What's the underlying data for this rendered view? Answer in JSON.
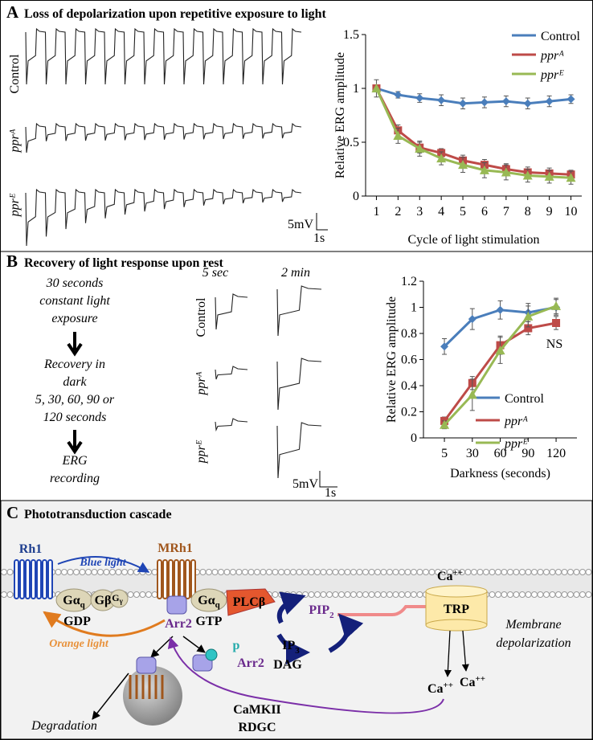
{
  "panel_a": {
    "letter": "A",
    "title": "Loss of depolarization upon repetitive exposure to light",
    "traces": [
      "Control",
      "pprᴬ",
      "pprᴱ"
    ],
    "scale_v": "5mV",
    "scale_t": "1s"
  },
  "panel_b": {
    "letter": "B",
    "title": "Recovery of  light response upon rest",
    "protocol": [
      [
        "30 seconds",
        "constant light",
        "exposure"
      ],
      [
        "Recovery in",
        "dark",
        "5, 30, 60, 90 or",
        "120 seconds"
      ],
      [
        "ERG",
        "recording"
      ]
    ],
    "times": [
      "5 sec",
      "2 min"
    ],
    "traces": [
      "Control",
      "pprᴬ",
      "pprᴱ"
    ],
    "scale_v": "5mV",
    "scale_t": "1s"
  },
  "panel_c": {
    "letter": "C",
    "title": "Phototransduction cascade"
  },
  "chart_data": [
    {
      "type": "line",
      "xlabel": "Cycle of light stimulation",
      "ylabel": "Relative ERG amplitude",
      "x": [
        1,
        2,
        3,
        4,
        5,
        6,
        7,
        8,
        9,
        10
      ],
      "xlim": [
        0.5,
        10.5
      ],
      "xticks": [
        1,
        2,
        3,
        4,
        5,
        6,
        7,
        8,
        9,
        10
      ],
      "ylim": [
        0,
        1.5
      ],
      "yticks": [
        0,
        0.5,
        1,
        1.5
      ],
      "legend": "top-right",
      "series": [
        {
          "name": "Control",
          "color": "#4a7ebb",
          "marker": "diamond",
          "values": [
            1,
            0.94,
            0.91,
            0.89,
            0.86,
            0.87,
            0.88,
            0.86,
            0.88,
            0.9
          ],
          "errors": [
            0.02,
            0.03,
            0.04,
            0.05,
            0.05,
            0.05,
            0.05,
            0.05,
            0.05,
            0.04
          ]
        },
        {
          "name": "pprᴬ",
          "color": "#be4b48",
          "marker": "square",
          "values": [
            1,
            0.61,
            0.45,
            0.4,
            0.33,
            0.29,
            0.25,
            0.22,
            0.21,
            0.2
          ],
          "errors": [
            0.03,
            0.05,
            0.05,
            0.04,
            0.05,
            0.05,
            0.05,
            0.05,
            0.05,
            0.04
          ]
        },
        {
          "name": "pprᴱ",
          "color": "#98b954",
          "marker": "triangle",
          "values": [
            1,
            0.56,
            0.44,
            0.35,
            0.29,
            0.24,
            0.22,
            0.19,
            0.18,
            0.17
          ],
          "errors": [
            0.08,
            0.07,
            0.07,
            0.06,
            0.07,
            0.07,
            0.07,
            0.06,
            0.06,
            0.06
          ]
        }
      ]
    },
    {
      "type": "line",
      "xlabel": "Darkness  (seconds)",
      "ylabel": "Relative ERG amplitude",
      "categories": [
        "5",
        "30",
        "60",
        "90",
        "120"
      ],
      "ylim": [
        0,
        1.2
      ],
      "yticks": [
        0,
        0.2,
        0.4,
        0.6,
        0.8,
        1,
        1.2
      ],
      "legend": "bottom-right",
      "annotation": "NS",
      "series": [
        {
          "name": "Control",
          "color": "#4a7ebb",
          "marker": "diamond",
          "values": [
            0.7,
            0.91,
            0.98,
            0.96,
            1
          ],
          "errors": [
            0.06,
            0.08,
            0.07,
            0.07,
            0.06
          ]
        },
        {
          "name": "pprᴬ",
          "color": "#be4b48",
          "marker": "square",
          "values": [
            0.13,
            0.42,
            0.71,
            0.84,
            0.88
          ],
          "errors": [
            0.03,
            0.05,
            0.07,
            0.05,
            0.05
          ]
        },
        {
          "name": "pprᴱ",
          "color": "#98b954",
          "marker": "triangle",
          "values": [
            0.1,
            0.33,
            0.67,
            0.93,
            1.01
          ],
          "errors": [
            0.03,
            0.12,
            0.1,
            0.08,
            0.06
          ]
        }
      ]
    }
  ],
  "diagram": {
    "rh1": "Rh1",
    "blue_light": "Blue light",
    "mrh1": "MRh1",
    "orange_light": "Orange light",
    "g_alpha_1": {
      "main": "Gα",
      "sub": "q"
    },
    "g_beta": "Gβ",
    "g_gamma": {
      "main": "G",
      "sub": "γ"
    },
    "gdp": "GDP",
    "g_alpha_2": {
      "main": "Gα",
      "sub": "q"
    },
    "gtp": "GTP",
    "plc": "PLCβ",
    "arr2_bound": "Arr2",
    "arr2_free": "Arr2",
    "phospho": "p",
    "pip2": {
      "main": "PIP",
      "sub": "2"
    },
    "ip3": {
      "main": "IP",
      "sub": "3"
    },
    "dag": "DAG",
    "trp": "TRP",
    "ca_top": {
      "main": "Ca",
      "sup": "++"
    },
    "ca_1": {
      "main": "Ca",
      "sup": "++"
    },
    "ca_2": {
      "main": "Ca",
      "sup": "++"
    },
    "membrane": [
      "Membrane",
      "depolarization"
    ],
    "degradation": "Degradation",
    "camkii": "CaMKII",
    "rdgc": "RDGC"
  }
}
